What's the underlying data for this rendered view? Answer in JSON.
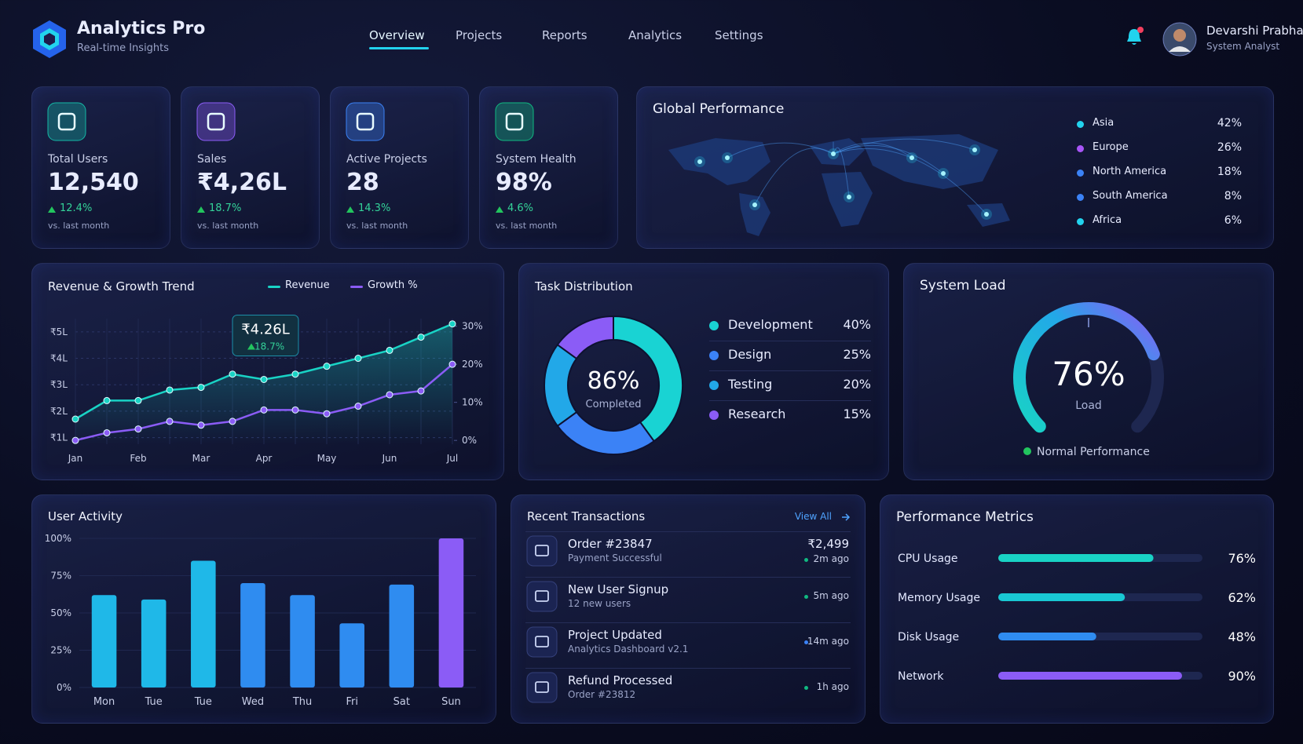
{
  "header": {
    "brand": "Analytics Pro",
    "tagline": "Real-time Insights",
    "nav": [
      "Overview",
      "Projects",
      "Reports",
      "Analytics",
      "Settings"
    ],
    "active_nav": 0
  },
  "user": {
    "name": "Devarshi Prabhakar",
    "role": "System Analyst"
  },
  "kpis": [
    {
      "label": "Total Users",
      "value": "12,540",
      "change": "12.4%",
      "note": "vs. last month",
      "color": "#14b8a6"
    },
    {
      "label": "Sales",
      "value": "₹4,26L",
      "change": "18.7%",
      "note": "vs. last month",
      "color": "#8b5cf6"
    },
    {
      "label": "Active Projects",
      "value": "28",
      "change": "14.3%",
      "note": "vs. last month",
      "color": "#3b82f6"
    },
    {
      "label": "System Health",
      "value": "98%",
      "change": "4.6%",
      "note": "vs. last month",
      "color": "#10b981"
    }
  ],
  "global_performance": {
    "title": "Global Performance",
    "regions": [
      {
        "name": "Asia",
        "share": "42%",
        "color": "#22d3ee"
      },
      {
        "name": "Europe",
        "share": "26%",
        "color": "#a855f7"
      },
      {
        "name": "North America",
        "share": "18%",
        "color": "#3b82f6"
      },
      {
        "name": "South America",
        "share": "8%",
        "color": "#3b82f6"
      },
      {
        "name": "Africa",
        "share": "6%",
        "color": "#22d3ee"
      }
    ]
  },
  "revenue_chart": {
    "type": "line",
    "title": "Revenue & Growth Trend",
    "categories": [
      "Jan",
      null,
      "Feb",
      null,
      "Mar",
      null,
      "Apr",
      null,
      "May",
      null,
      "Jun",
      null,
      "Jul"
    ],
    "series": [
      {
        "name": "Revenue",
        "color": "#19d3c5",
        "values": [
          1.7,
          2.4,
          2.4,
          2.8,
          2.9,
          3.4,
          3.2,
          3.4,
          3.7,
          4.0,
          4.3,
          4.8,
          5.3
        ]
      },
      {
        "name": "Growth %",
        "color": "#8b5cf6",
        "axis": "y2",
        "values": [
          0,
          2,
          3,
          5,
          4,
          5,
          8,
          8,
          7,
          9,
          12,
          13,
          20
        ]
      }
    ],
    "ylim": [
      0.75,
      5.5
    ],
    "yticks": [
      {
        "value": 1,
        "label": "₹1L"
      },
      {
        "value": 2,
        "label": "₹2L"
      },
      {
        "value": 3,
        "label": "₹3L"
      },
      {
        "value": 4,
        "label": "₹4L"
      },
      {
        "value": 5,
        "label": "₹5L"
      }
    ],
    "y2lim": [
      -1,
      32
    ],
    "y2ticks": [
      {
        "value": 0,
        "label": "0%"
      },
      {
        "value": 10,
        "label": "10%"
      },
      {
        "value": 20,
        "label": "20%"
      },
      {
        "value": 30,
        "label": "30%"
      }
    ],
    "grid": true,
    "annotation": {
      "value": "₹4.26L",
      "change": "18.7%"
    }
  },
  "task_distribution": {
    "type": "pie",
    "title": "Task Distribution",
    "center_value": "86%",
    "center_label": "Completed",
    "categories": [
      "Development",
      "Design",
      "Testing",
      "Research"
    ],
    "values": [
      40,
      25,
      20,
      15
    ],
    "value_labels": [
      "40%",
      "25%",
      "20%",
      "15%"
    ],
    "colors": [
      "#19d3d3",
      "#3b82f6",
      "#22a8e8",
      "#8b5cf6"
    ]
  },
  "system_load": {
    "type": "gauge",
    "title": "System Load",
    "value": 76,
    "value_label": "76%",
    "label": "Load",
    "status": "Normal Performance",
    "ylim": [
      0,
      100
    ]
  },
  "user_activity": {
    "type": "bar",
    "title": "User Activity",
    "categories": [
      "Mon",
      "Tue",
      "Tue",
      "Wed",
      "Thu",
      "Fri",
      "Sat",
      "Sun"
    ],
    "values": [
      62,
      59,
      85,
      70,
      62,
      43,
      69,
      100
    ],
    "colors": [
      "#1fb8e8",
      "#1fb8e8",
      "#1fb8e8",
      "#2f8cf0",
      "#2f8cf0",
      "#2f8cf0",
      "#2f8cf0",
      "#8b5cf6"
    ],
    "ylim": [
      0,
      100
    ],
    "yticks": [
      {
        "value": 0,
        "label": "0%"
      },
      {
        "value": 25,
        "label": "25%"
      },
      {
        "value": 50,
        "label": "50%"
      },
      {
        "value": 75,
        "label": "75%"
      },
      {
        "value": 100,
        "label": "100%"
      }
    ]
  },
  "transactions": {
    "title": "Recent Transactions",
    "link": "View All",
    "items": [
      {
        "title": "Order #23847",
        "detail": "Payment Successful",
        "amount": "₹2,499",
        "time": "2m ago",
        "dot_color": "#10b981"
      },
      {
        "title": "New User Signup",
        "detail": "12 new users",
        "time": "5m ago",
        "dot_color": "#10b981"
      },
      {
        "title": "Project Updated",
        "detail": "Analytics Dashboard v2.1",
        "time": "14m ago",
        "dot_color": "#3b82f6"
      },
      {
        "title": "Refund Processed",
        "detail": "Order #23812",
        "time": "1h ago",
        "dot_color": "#10b981"
      }
    ]
  },
  "performance_metrics": {
    "type": "bar",
    "title": "Performance Metrics",
    "categories": [
      "CPU Usage",
      "Memory Usage",
      "Disk Usage",
      "Network"
    ],
    "values": [
      76,
      62,
      48,
      90
    ],
    "value_labels": [
      "76%",
      "62%",
      "48%",
      "90%"
    ],
    "colors": [
      "#19d3c5",
      "#19c8d3",
      "#2f8cf0",
      "#8b5cf6"
    ],
    "xlim": [
      0,
      100
    ]
  }
}
